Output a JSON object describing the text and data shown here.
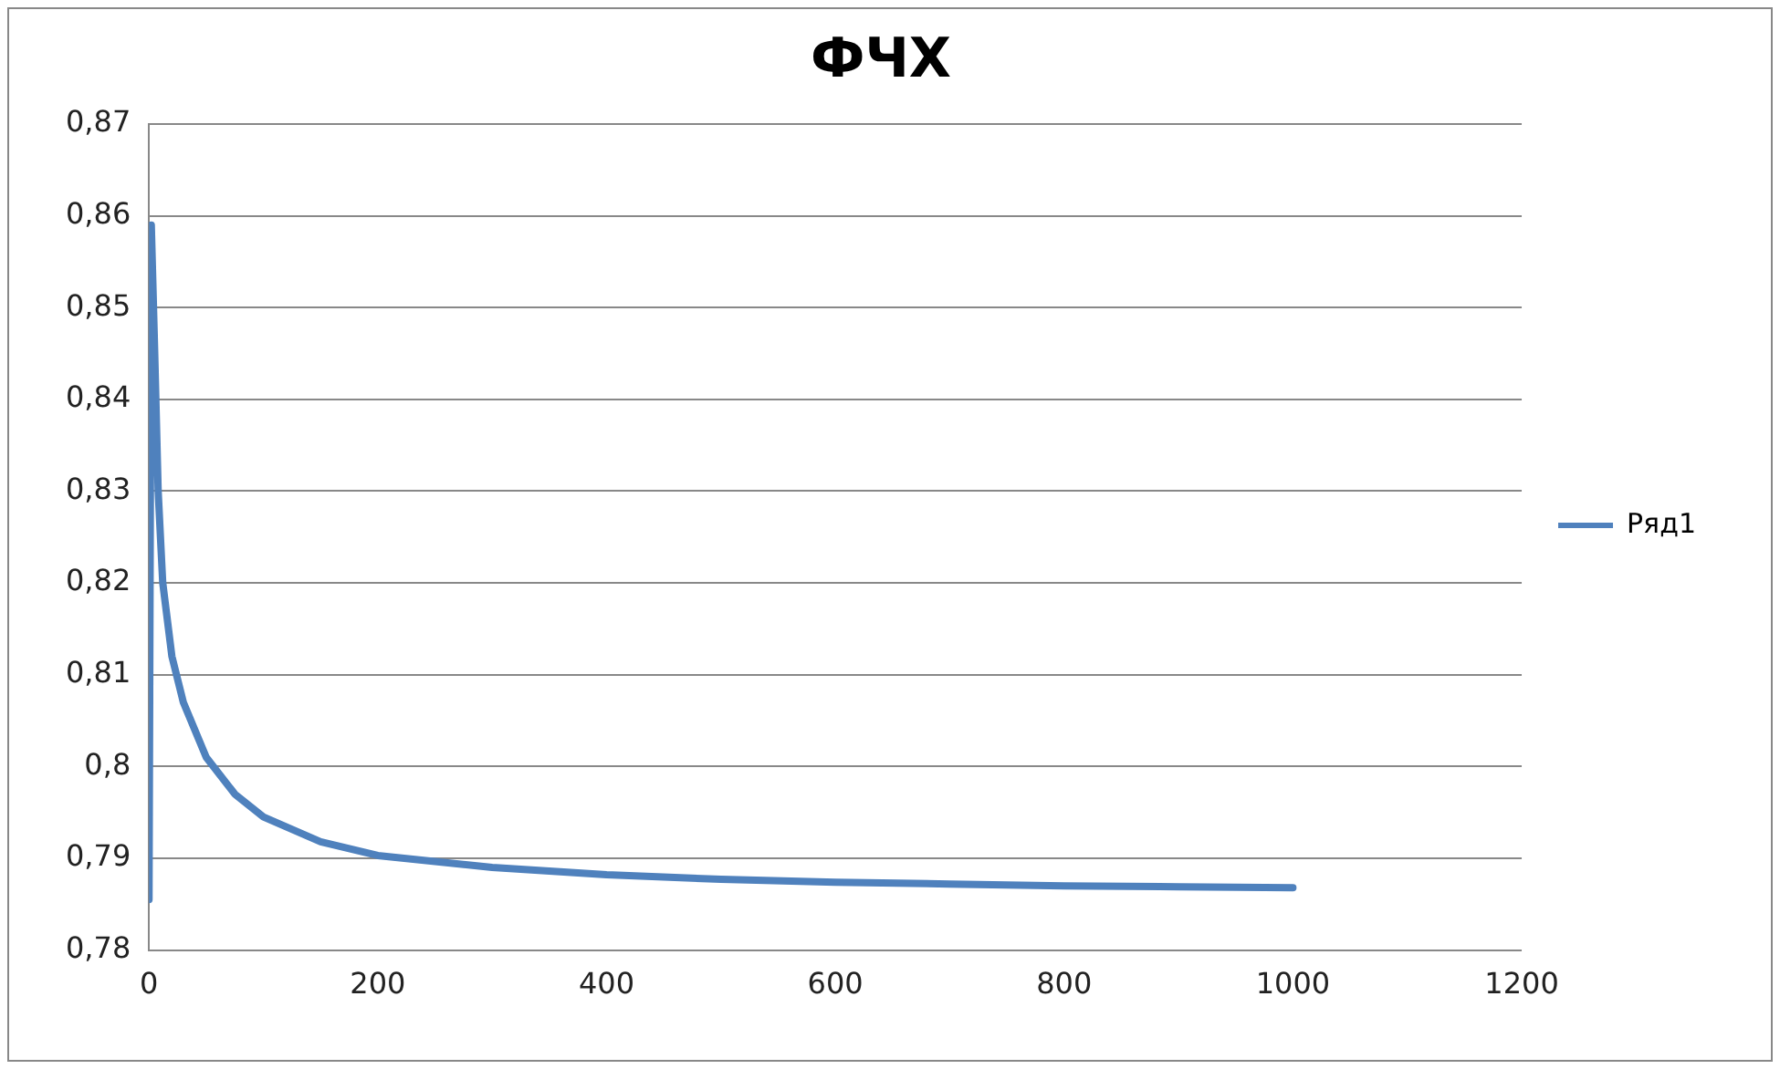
{
  "chart_data": {
    "type": "line",
    "title": "ФЧХ",
    "x": [
      0,
      2,
      5,
      8,
      12,
      20,
      30,
      50,
      75,
      100,
      150,
      200,
      300,
      400,
      500,
      600,
      700,
      800,
      900,
      1000
    ],
    "series": [
      {
        "name": "Ряд1",
        "color": "#4f81bd",
        "values": [
          0.7855,
          0.859,
          0.845,
          0.83,
          0.82,
          0.812,
          0.807,
          0.801,
          0.797,
          0.7945,
          0.7918,
          0.7903,
          0.789,
          0.7882,
          0.7877,
          0.7874,
          0.7872,
          0.787,
          0.7869,
          0.7868
        ]
      }
    ],
    "xlim": [
      0,
      1200
    ],
    "xticks": [
      0,
      200,
      400,
      600,
      800,
      1000,
      1200
    ],
    "ylim": [
      0.78,
      0.87
    ],
    "yticks": [
      {
        "value": 0.78,
        "label": "0,78"
      },
      {
        "value": 0.79,
        "label": "0,79"
      },
      {
        "value": 0.8,
        "label": "0,8"
      },
      {
        "value": 0.81,
        "label": "0,81"
      },
      {
        "value": 0.82,
        "label": "0,82"
      },
      {
        "value": 0.83,
        "label": "0,83"
      },
      {
        "value": 0.84,
        "label": "0,84"
      },
      {
        "value": 0.85,
        "label": "0,85"
      },
      {
        "value": 0.86,
        "label": "0,86"
      },
      {
        "value": 0.87,
        "label": "0,87"
      }
    ],
    "grid": "y",
    "legend": "right",
    "marker": "none",
    "line_style": "solid"
  }
}
